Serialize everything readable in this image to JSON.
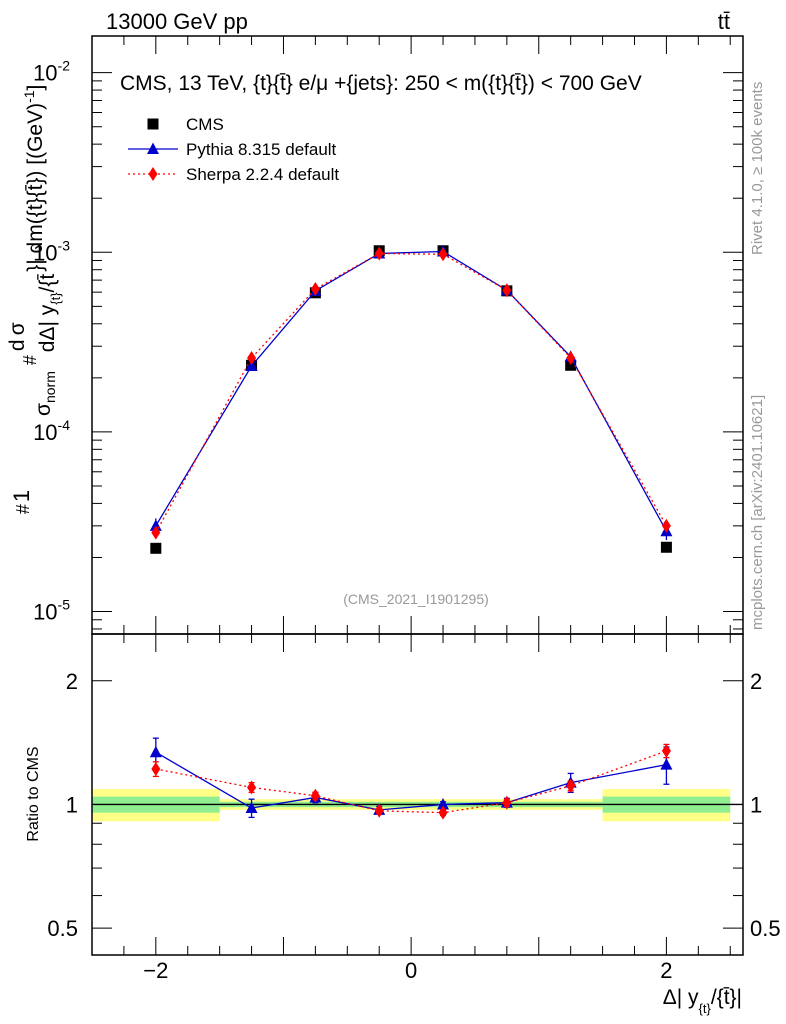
{
  "header": {
    "left": "13000 GeV pp",
    "right": "tt̄"
  },
  "side_text": {
    "rivet": "Rivet 4.1.0, ≥ 100k events",
    "mcplots": "mcplots.cern.ch [arXiv:2401.10621]"
  },
  "chart_data": [
    {
      "type": "line",
      "panel": "main",
      "title": "CMS, 13 TeV, {t}{t̄} e/μ +{jets}: 250 < m({t}{t̄}) < 700 GeV",
      "watermark": "(CMS_2021_I1901295)",
      "ylabel": "#1/σnorm # dσ/dΔ| y_{t}/{t̄}| dm({t}{t̄}) [(GeV)^-1]",
      "ylabel_parts": {
        "num1": "#",
        "one": "1",
        "sigma": "σ",
        "norm": "norm",
        "num2": "#",
        "dsigma": "d σ",
        "den": "dΔ| y",
        "sub_t": "{t}",
        "den_tail": "/{t̄",
        "rest": "}| dm({t}{t̄}) [(GeV)",
        "exp": "-1",
        "close": "]"
      },
      "yscale": "log",
      "ylim": [
        7.5e-06,
        0.016
      ],
      "xlim": [
        -2.5,
        2.6
      ],
      "yticks": [
        {
          "base": "10",
          "exp": "-2",
          "value": 0.01
        },
        {
          "base": "10",
          "exp": "-3",
          "value": 0.001
        },
        {
          "base": "10",
          "exp": "-4",
          "value": 0.0001
        },
        {
          "base": "10",
          "exp": "-5",
          "value": 1e-05
        }
      ],
      "legend_position": "top-left",
      "x": [
        -2.0,
        -1.25,
        -0.75,
        -0.25,
        0.25,
        0.75,
        1.25,
        2.0
      ],
      "series": [
        {
          "name": "CMS",
          "color": "#000000",
          "marker": "square",
          "values": [
            2.25e-05,
            0.000235,
            0.000595,
            0.00102,
            0.00102,
            0.00061,
            0.000235,
            2.28e-05
          ],
          "errors": [
            0,
            0,
            0,
            0,
            0,
            0,
            0,
            0
          ]
        },
        {
          "name": "Pythia 8.315 default",
          "color": "#0000cc",
          "marker": "triangle",
          "values": [
            3e-05,
            0.000233,
            0.00061,
            0.000985,
            0.00101,
            0.000615,
            0.000262,
            2.8e-05
          ],
          "errors": [
            3e-06,
            1e-05,
            1.5e-05,
            1.5e-05,
            1.5e-05,
            1.5e-05,
            1.2e-05,
            3e-06
          ]
        },
        {
          "name": "Sherpa 2.2.4 default",
          "color": "#ff0000",
          "marker": "diamond",
          "values": [
            2.75e-05,
            0.000258,
            0.000625,
            0.000985,
            0.000975,
            0.000615,
            0.000258,
            3e-05
          ],
          "errors": [
            1.5e-06,
            7e-06,
            1.2e-05,
            1.5e-05,
            1.5e-05,
            1.2e-05,
            8e-06,
            1.5e-06
          ]
        }
      ]
    },
    {
      "type": "line",
      "panel": "ratio",
      "ylabel": "Ratio to CMS",
      "xlabel": "Δ| y_{t}/{t̄}|",
      "xlabel_parts": {
        "main": "Δ| y",
        "sub": "{t}",
        "tail": "/{t̄}|"
      },
      "yscale": "log",
      "ylim": [
        0.43,
        2.6
      ],
      "xlim": [
        -2.5,
        2.6
      ],
      "yticks": [
        {
          "label": "2",
          "value": 2
        },
        {
          "label": "1",
          "value": 1
        },
        {
          "label": "0.5",
          "value": 0.5
        }
      ],
      "xticks": [
        {
          "label": "−2",
          "value": -2
        },
        {
          "label": "0",
          "value": 0
        },
        {
          "label": "2",
          "value": 2
        }
      ],
      "bands": [
        {
          "x_from": -2.5,
          "x_to": -1.5,
          "green": [
            0.955,
            1.045
          ],
          "yellow": [
            0.91,
            1.09
          ]
        },
        {
          "x_from": -1.5,
          "x_to": 1.5,
          "green": [
            0.985,
            1.015
          ],
          "yellow": [
            0.97,
            1.03
          ]
        },
        {
          "x_from": 1.5,
          "x_to": 2.5,
          "green": [
            0.955,
            1.045
          ],
          "yellow": [
            0.91,
            1.09
          ]
        }
      ],
      "x": [
        -2.0,
        -1.25,
        -0.75,
        -0.25,
        0.25,
        0.75,
        1.25,
        2.0
      ],
      "series": [
        {
          "name": "Pythia 8.315 default",
          "color": "#0000cc",
          "marker": "triangle",
          "values": [
            1.34,
            0.98,
            1.04,
            0.97,
            1.0,
            1.01,
            1.13,
            1.25
          ],
          "errors": [
            0.11,
            0.05,
            0.03,
            0.02,
            0.015,
            0.025,
            0.06,
            0.13
          ]
        },
        {
          "name": "Sherpa 2.2.4 default",
          "color": "#ff0000",
          "marker": "diamond",
          "values": [
            1.22,
            1.1,
            1.05,
            0.965,
            0.955,
            1.01,
            1.11,
            1.35
          ],
          "errors": [
            0.05,
            0.03,
            0.02,
            0.015,
            0.015,
            0.02,
            0.03,
            0.05
          ]
        }
      ]
    }
  ]
}
